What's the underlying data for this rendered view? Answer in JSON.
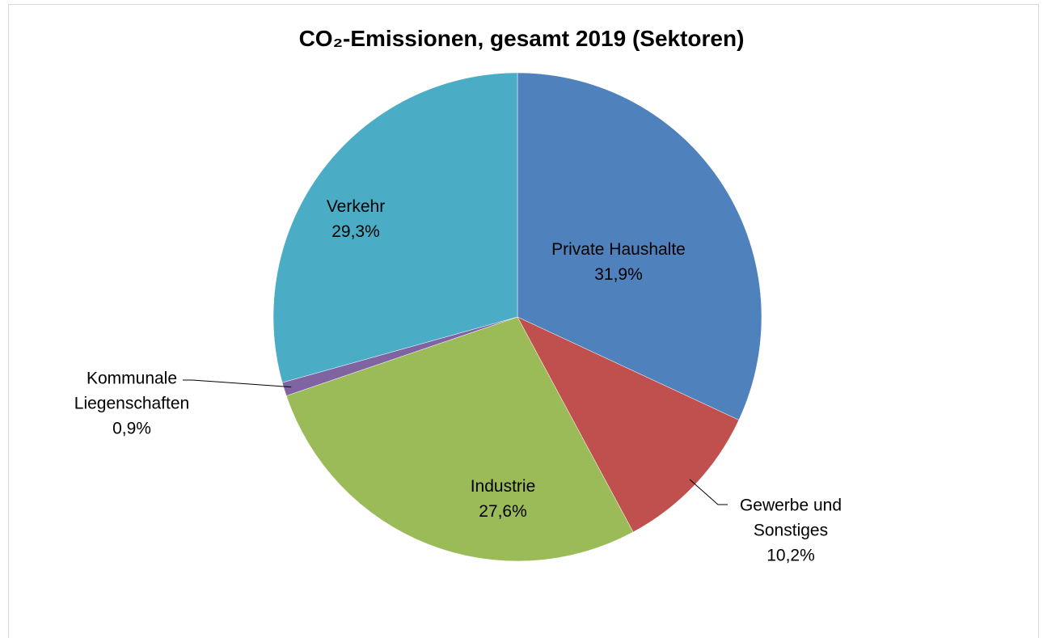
{
  "chart_data": {
    "type": "pie",
    "title": "CO₂-Emissionen, gesamt 2019 (Sektoren)",
    "categories": [
      "Private Haushalte",
      "Gewerbe und Sonstiges",
      "Industrie",
      "Kommunale Liegenschaften",
      "Verkehr"
    ],
    "values": [
      31.9,
      10.2,
      27.6,
      0.9,
      29.3
    ],
    "value_labels": [
      "31,9%",
      "10,2%",
      "27,6%",
      "0,9%",
      "29,3%"
    ],
    "colors": [
      "#4f81bd",
      "#c0504d",
      "#9bbb59",
      "#8064a2",
      "#4bacc6"
    ]
  }
}
